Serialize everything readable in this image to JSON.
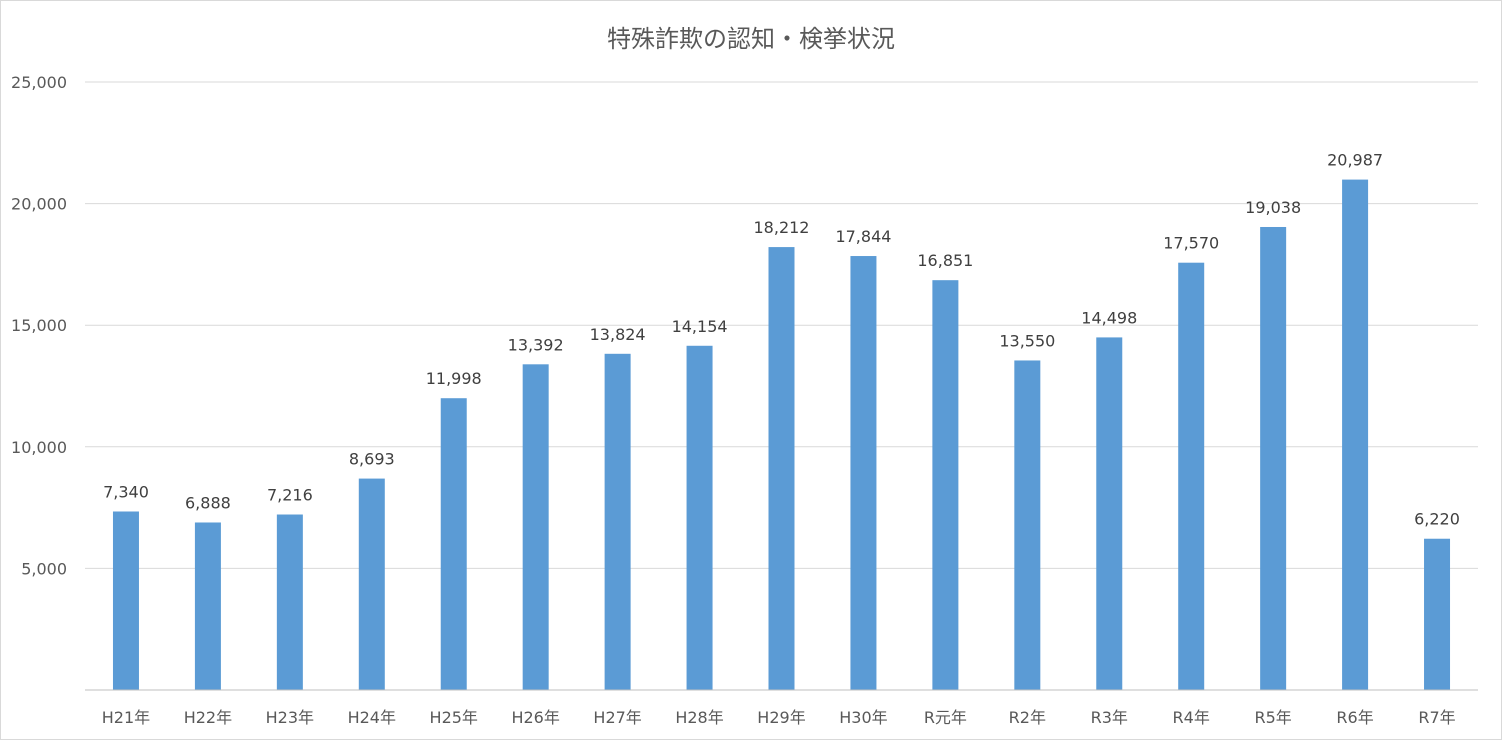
{
  "chart_data": {
    "type": "bar",
    "title": "特殊詐欺の認知・検挙状況",
    "xlabel": "",
    "ylabel": "",
    "categories": [
      "H21年",
      "H22年",
      "H23年",
      "H24年",
      "H25年",
      "H26年",
      "H27年",
      "H28年",
      "H29年",
      "H30年",
      "R元年",
      "R2年",
      "R3年",
      "R4年",
      "R5年",
      "R6年",
      "R7年"
    ],
    "values": [
      7340,
      6888,
      7216,
      8693,
      11998,
      13392,
      13824,
      14154,
      18212,
      17844,
      16851,
      13550,
      14498,
      17570,
      19038,
      20987,
      6220
    ],
    "data_labels": [
      "7,340",
      "6,888",
      "7,216",
      "8,693",
      "11,998",
      "13,392",
      "13,824",
      "14,154",
      "18,212",
      "17,844",
      "16,851",
      "13,550",
      "14,498",
      "17,570",
      "19,038",
      "20,987",
      "6,220"
    ],
    "ylim": [
      0,
      25000
    ],
    "y_ticks": [
      5000,
      10000,
      15000,
      20000,
      25000
    ],
    "y_tick_labels": [
      "5,000",
      "10,000",
      "15,000",
      "20,000",
      "25,000"
    ],
    "grid": true,
    "legend": "none",
    "colors": {
      "bar": "#5b9bd5",
      "grid": "#d9d9d9",
      "axis": "#bfbfbf",
      "text": "#595959",
      "label": "#404040"
    }
  }
}
